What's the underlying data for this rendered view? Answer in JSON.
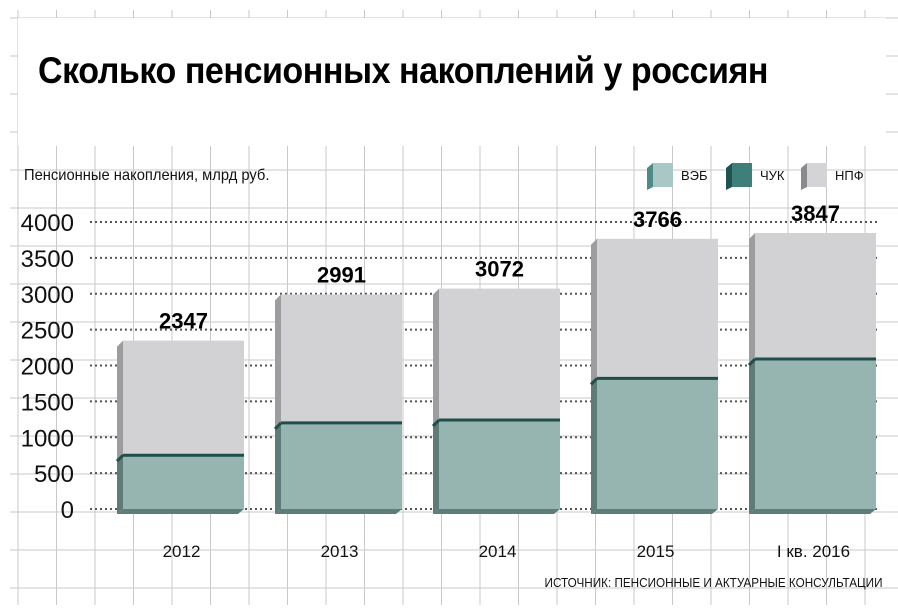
{
  "title": "Сколько пенсионных накоплений у россиян",
  "subtitle": "Пенсионные накопления, млрд руб.",
  "source": "ИСТОЧНИК: ПЕНСИОННЫЕ И АКТУАРНЫЕ КОНСУЛЬТАЦИИ",
  "legend": [
    {
      "label": "ВЭБ",
      "color": "#a9c8c5",
      "side": "#4d8c86"
    },
    {
      "label": "ЧУК",
      "color": "#3f7f7a",
      "side": "#1f5350"
    },
    {
      "label": "НПФ",
      "color": "#d4d4d6",
      "side": "#8a8a8c"
    }
  ],
  "chart_data": {
    "type": "bar",
    "stacked": true,
    "categories": [
      "2012",
      "2013",
      "2014",
      "2015",
      "I кв. 2016"
    ],
    "totals": [
      2347,
      2991,
      3072,
      3766,
      3847
    ],
    "series": [
      {
        "name": "ВЭБ",
        "values": [
          750,
          1200,
          1240,
          1820,
          2090
        ],
        "color": "#97b5b0"
      },
      {
        "name": "НПФ",
        "values": [
          1597,
          1791,
          1832,
          1946,
          1757
        ],
        "color": "#d2d2d4"
      }
    ],
    "ylim": [
      0,
      4000
    ],
    "yticks": [
      0,
      500,
      1000,
      1500,
      2000,
      2500,
      3000,
      3500,
      4000
    ],
    "grid": true
  }
}
